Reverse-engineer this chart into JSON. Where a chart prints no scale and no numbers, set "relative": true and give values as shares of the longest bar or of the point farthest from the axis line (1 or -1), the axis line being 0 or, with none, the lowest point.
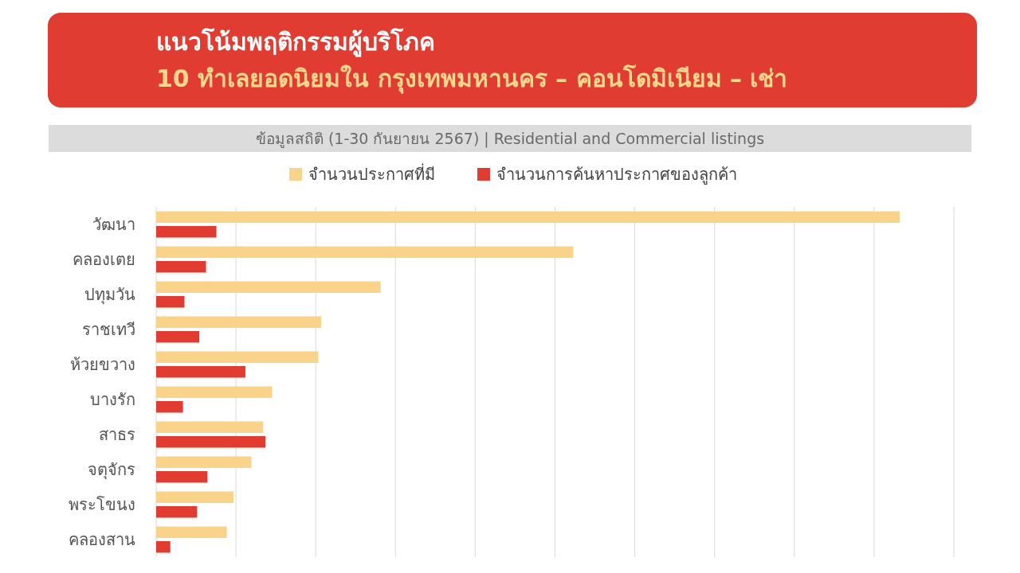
{
  "chart_data": {
    "type": "bar",
    "orientation": "horizontal",
    "relative": true,
    "title": "แนวโน้มพฤติกรรมผู้บริโภค",
    "subtitle": "10 ทำเลยอดนิยมใน กรุงเทพมหานคร – คอนโดมิเนียม – เช่า",
    "annotations": [
      "ข้อมูลสถิติ (1-30 กันยายน 2567) | Residential and Commercial listings"
    ],
    "categories": [
      "วัฒนา",
      "คลองเตย",
      "ปทุมวัน",
      "ราชเทวี",
      "ห้วยขวาง",
      "บางรัก",
      "สาธร",
      "จตุจักร",
      "พระโขนง",
      "คลองสาน"
    ],
    "series": [
      {
        "name": "จำนวนประกาศที่มี",
        "color": "#fad38b",
        "values": [
          1,
          0.561,
          0.302,
          0.222,
          0.218,
          0.156,
          0.144,
          0.128,
          0.104,
          0.095
        ]
      },
      {
        "name": "จำนวนการค้นหาประกาศของลูกค้า",
        "color": "#e03c31",
        "values": [
          0.081,
          0.067,
          0.038,
          0.058,
          0.12,
          0.036,
          0.147,
          0.069,
          0.055,
          0.019
        ]
      }
    ],
    "grid": "x",
    "legend": "top"
  }
}
